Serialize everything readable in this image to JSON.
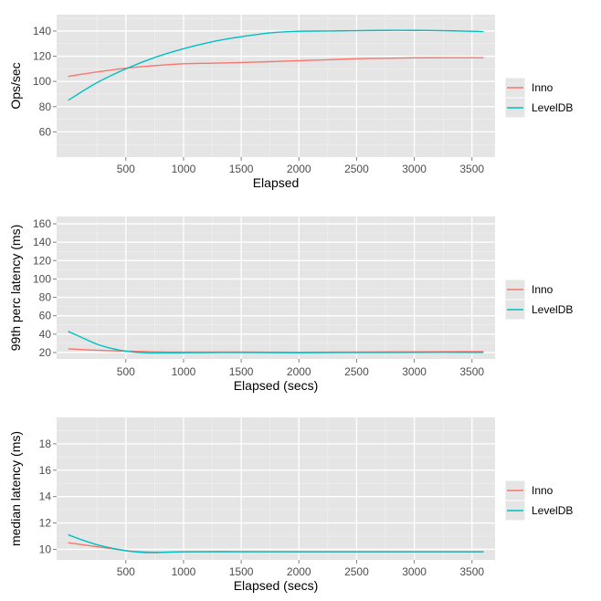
{
  "chart_data": [
    {
      "type": "line",
      "xlabel": "Elapsed",
      "ylabel": "Ops/sec",
      "xlim": [
        -100,
        3700
      ],
      "ylim": [
        40,
        153
      ],
      "x_ticks": [
        500,
        1000,
        1500,
        2000,
        2500,
        3000,
        3500
      ],
      "y_ticks": [
        60,
        80,
        100,
        120,
        140
      ],
      "grid": true,
      "legend": "right",
      "series": [
        {
          "name": "Inno",
          "color": "#F8766D",
          "x": [
            0,
            250,
            500,
            750,
            1000,
            1250,
            1500,
            1750,
            2000,
            2250,
            2500,
            2750,
            3000,
            3250,
            3500,
            3600
          ],
          "y": [
            104,
            107.5,
            110.5,
            112.5,
            114,
            114.5,
            115,
            115.7,
            116.5,
            117.2,
            118,
            118.4,
            118.7,
            118.8,
            118.8,
            118.8
          ]
        },
        {
          "name": "LevelDB",
          "color": "#00BFC4",
          "x": [
            0,
            250,
            500,
            750,
            1000,
            1250,
            1500,
            1750,
            2000,
            2250,
            2500,
            2750,
            3000,
            3250,
            3500,
            3600
          ],
          "y": [
            85,
            99,
            110,
            119,
            126,
            131.5,
            135.5,
            138.5,
            139.8,
            140,
            140.3,
            140.5,
            140.5,
            140.3,
            139.8,
            139.5
          ]
        }
      ]
    },
    {
      "type": "line",
      "xlabel": "Elapsed (secs)",
      "ylabel": "99th perc latency (ms)",
      "xlim": [
        -100,
        3700
      ],
      "ylim": [
        13,
        168
      ],
      "x_ticks": [
        500,
        1000,
        1500,
        2000,
        2500,
        3000,
        3500
      ],
      "y_ticks": [
        20,
        40,
        60,
        80,
        100,
        120,
        140,
        160
      ],
      "grid": true,
      "legend": "right",
      "series": [
        {
          "name": "Inno",
          "color": "#F8766D",
          "x": [
            0,
            250,
            500,
            750,
            1000,
            1500,
            2000,
            2500,
            3000,
            3600
          ],
          "y": [
            24,
            22.5,
            21.5,
            20.8,
            20.5,
            20.5,
            20.3,
            20.5,
            20.8,
            21
          ]
        },
        {
          "name": "LevelDB",
          "color": "#00BFC4",
          "x": [
            0,
            125,
            250,
            375,
            500,
            625,
            750,
            1000,
            1500,
            2000,
            2500,
            3000,
            3600
          ],
          "y": [
            43,
            36,
            29,
            24.5,
            21.5,
            20,
            19.5,
            19.8,
            20,
            19.8,
            20,
            20.2,
            20.2
          ]
        }
      ]
    },
    {
      "type": "line",
      "xlabel": "Elapsed (secs)",
      "ylabel": "median latency (ms)",
      "xlim": [
        -100,
        3700
      ],
      "ylim": [
        9.2,
        20
      ],
      "x_ticks": [
        500,
        1000,
        1500,
        2000,
        2500,
        3000,
        3500
      ],
      "y_ticks": [
        10,
        12,
        14,
        16,
        18
      ],
      "grid": true,
      "legend": "right",
      "series": [
        {
          "name": "Inno",
          "color": "#F8766D",
          "x": [
            0,
            125,
            250,
            375,
            500,
            625,
            750,
            1000,
            1500,
            2000,
            2500,
            3000,
            3600
          ],
          "y": [
            10.5,
            10.35,
            10.2,
            10.05,
            9.9,
            9.82,
            9.78,
            9.8,
            9.82,
            9.8,
            9.8,
            9.8,
            9.8
          ]
        },
        {
          "name": "LevelDB",
          "color": "#00BFC4",
          "x": [
            0,
            125,
            250,
            375,
            500,
            625,
            750,
            1000,
            1500,
            2000,
            2500,
            3000,
            3600
          ],
          "y": [
            11.1,
            10.7,
            10.35,
            10.1,
            9.9,
            9.78,
            9.75,
            9.82,
            9.82,
            9.82,
            9.82,
            9.82,
            9.82
          ]
        }
      ]
    }
  ]
}
